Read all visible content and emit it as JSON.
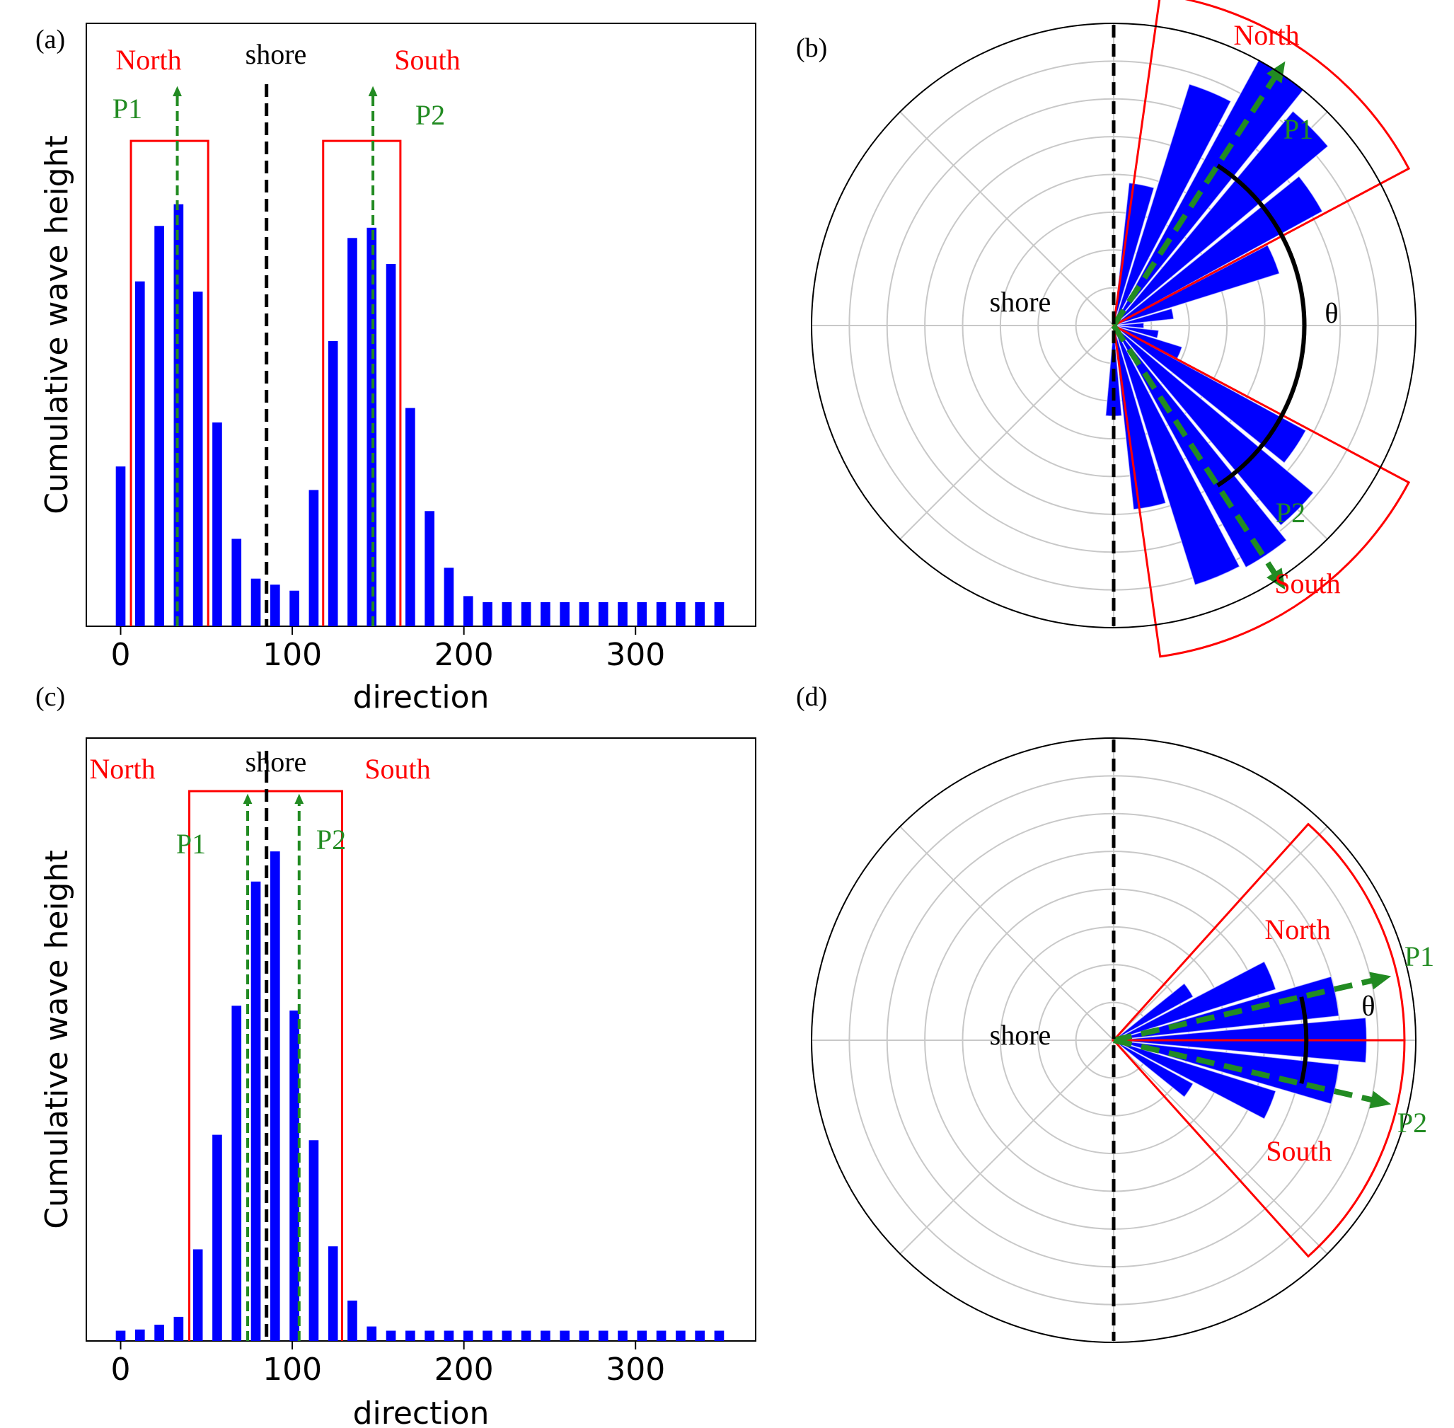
{
  "colors": {
    "bar": "#0000ff",
    "region": "#ff0000",
    "peak": "#228b22",
    "shore": "#000000",
    "grid": "#c8c8c8",
    "label_red": "#ff0000",
    "label_green": "#228b22"
  },
  "chart_data": [
    {
      "panel": "(a)",
      "type": "bar",
      "title": "",
      "xlabel": "direction",
      "ylabel": "Cumulative wave height",
      "xlim": [
        -20,
        370
      ],
      "ylim": [
        0,
        1.0
      ],
      "xticks": [
        0,
        100,
        200,
        300
      ],
      "x": [
        0,
        11.25,
        22.5,
        33.75,
        45,
        56.25,
        67.5,
        78.75,
        90,
        101.25,
        112.5,
        123.75,
        135,
        146.25,
        157.5,
        168.75,
        180,
        191.25,
        202.5,
        213.75,
        225,
        236.25,
        247.5,
        258.75,
        270,
        281.25,
        292.5,
        303.75,
        315,
        326.25,
        337.5,
        348.75
      ],
      "values": [
        0.265,
        0.572,
        0.664,
        0.7,
        0.555,
        0.338,
        0.145,
        0.079,
        0.069,
        0.059,
        0.226,
        0.473,
        0.644,
        0.661,
        0.601,
        0.362,
        0.191,
        0.097,
        0.05,
        0.04,
        0.04,
        0.04,
        0.04,
        0.04,
        0.04,
        0.04,
        0.04,
        0.04,
        0.04,
        0.04,
        0.04,
        0.04
      ],
      "shore_direction": 85,
      "regions": [
        {
          "label": "North",
          "x0": 6,
          "x1": 51,
          "top": 0.805
        },
        {
          "label": "South",
          "x0": 118,
          "x1": 163,
          "top": 0.805
        }
      ],
      "peaks": [
        {
          "label": "P1",
          "x": 33
        },
        {
          "label": "P2",
          "x": 147
        }
      ],
      "labels": {
        "north": "North",
        "south": "South",
        "shore": "shore",
        "p1": "P1",
        "p2": "P2"
      }
    },
    {
      "panel": "(b)",
      "type": "polar-bar",
      "title": "",
      "rmax": 8,
      "rings": [
        1,
        2,
        3,
        4,
        5,
        6,
        7,
        8
      ],
      "bins": [
        {
          "angle": 78.75,
          "r": 3.8
        },
        {
          "angle": 67.5,
          "r": 6.7
        },
        {
          "angle": 56.25,
          "r": 8.0
        },
        {
          "angle": 45.0,
          "r": 7.4
        },
        {
          "angle": 33.75,
          "r": 6.3
        },
        {
          "angle": 22.5,
          "r": 4.6
        },
        {
          "angle": 11.25,
          "r": 1.6
        },
        {
          "angle": 0.0,
          "r": 0.8
        },
        {
          "angle": -11.25,
          "r": 1.2
        },
        {
          "angle": -22.5,
          "r": 1.9
        },
        {
          "angle": -33.75,
          "r": 5.8
        },
        {
          "angle": -45.0,
          "r": 6.9
        },
        {
          "angle": -56.25,
          "r": 7.3
        },
        {
          "angle": -67.5,
          "r": 7.2
        },
        {
          "angle": -78.75,
          "r": 4.9
        },
        {
          "angle": -90.0,
          "r": 2.4
        }
      ],
      "regions": [
        {
          "label": "North",
          "a0": 28,
          "a1": 82
        },
        {
          "label": "South",
          "a0": -82,
          "a1": -28
        }
      ],
      "region_rmax": 8.85,
      "peaks": [
        {
          "label": "P1",
          "angle": 57
        },
        {
          "label": "P2",
          "angle": -57
        }
      ],
      "peak_r": 8.1,
      "theta_arc": {
        "from": 57,
        "to": -57,
        "r": 5.05
      },
      "labels": {
        "north": "North",
        "south": "South",
        "shore": "shore",
        "p1": "P1",
        "p2": "P2",
        "theta": "θ"
      }
    },
    {
      "panel": "(c)",
      "type": "bar",
      "title": "",
      "xlabel": "direction",
      "ylabel": "Cumulative wave height",
      "xlim": [
        -20,
        370
      ],
      "ylim": [
        0,
        1.0
      ],
      "xticks": [
        0,
        100,
        200,
        300
      ],
      "x": [
        0,
        11.25,
        22.5,
        33.75,
        45,
        56.25,
        67.5,
        78.75,
        90,
        101.25,
        112.5,
        123.75,
        135,
        146.25,
        157.5,
        168.75,
        180,
        191.25,
        202.5,
        213.75,
        225,
        236.25,
        247.5,
        258.75,
        270,
        281.25,
        292.5,
        303.75,
        315,
        326.25,
        337.5,
        348.75
      ],
      "values": [
        0.017,
        0.019,
        0.027,
        0.04,
        0.152,
        0.342,
        0.556,
        0.762,
        0.812,
        0.548,
        0.333,
        0.157,
        0.067,
        0.024,
        0.017,
        0.017,
        0.017,
        0.017,
        0.017,
        0.017,
        0.017,
        0.017,
        0.017,
        0.017,
        0.017,
        0.017,
        0.017,
        0.017,
        0.017,
        0.017,
        0.017,
        0.017
      ],
      "shore_direction": 85,
      "regions": [
        {
          "label": "North / South",
          "x0": 40,
          "x1": 129,
          "top": 0.912
        }
      ],
      "peaks": [
        {
          "label": "P1",
          "x": 74
        },
        {
          "label": "P2",
          "x": 104
        }
      ],
      "labels": {
        "north": "North",
        "south": "South",
        "shore": "shore",
        "p1": "P1",
        "p2": "P2"
      }
    },
    {
      "panel": "(d)",
      "type": "polar-bar",
      "title": "",
      "rmax": 8,
      "rings": [
        1,
        2,
        3,
        4,
        5,
        6,
        7,
        8
      ],
      "bins": [
        {
          "angle": 33.75,
          "r": 2.4
        },
        {
          "angle": 22.5,
          "r": 4.5
        },
        {
          "angle": 11.25,
          "r": 6.0
        },
        {
          "angle": 0.0,
          "r": 6.7
        },
        {
          "angle": -11.25,
          "r": 6.0
        },
        {
          "angle": -22.5,
          "r": 4.5
        },
        {
          "angle": -33.75,
          "r": 2.4
        }
      ],
      "regions": [
        {
          "label": "North",
          "a0": 0,
          "a1": 48
        },
        {
          "label": "South",
          "a0": -48,
          "a1": 0
        }
      ],
      "region_rmax": 7.7,
      "peaks": [
        {
          "label": "P1",
          "angle": 13
        },
        {
          "label": "P2",
          "angle": -13
        }
      ],
      "peak_r": 7.3,
      "theta_arc": {
        "from": 13,
        "to": -13,
        "r": 5.1
      },
      "labels": {
        "north": "North",
        "south": "South",
        "shore": "shore",
        "p1": "P1",
        "p2": "P2",
        "theta": "θ"
      }
    }
  ]
}
